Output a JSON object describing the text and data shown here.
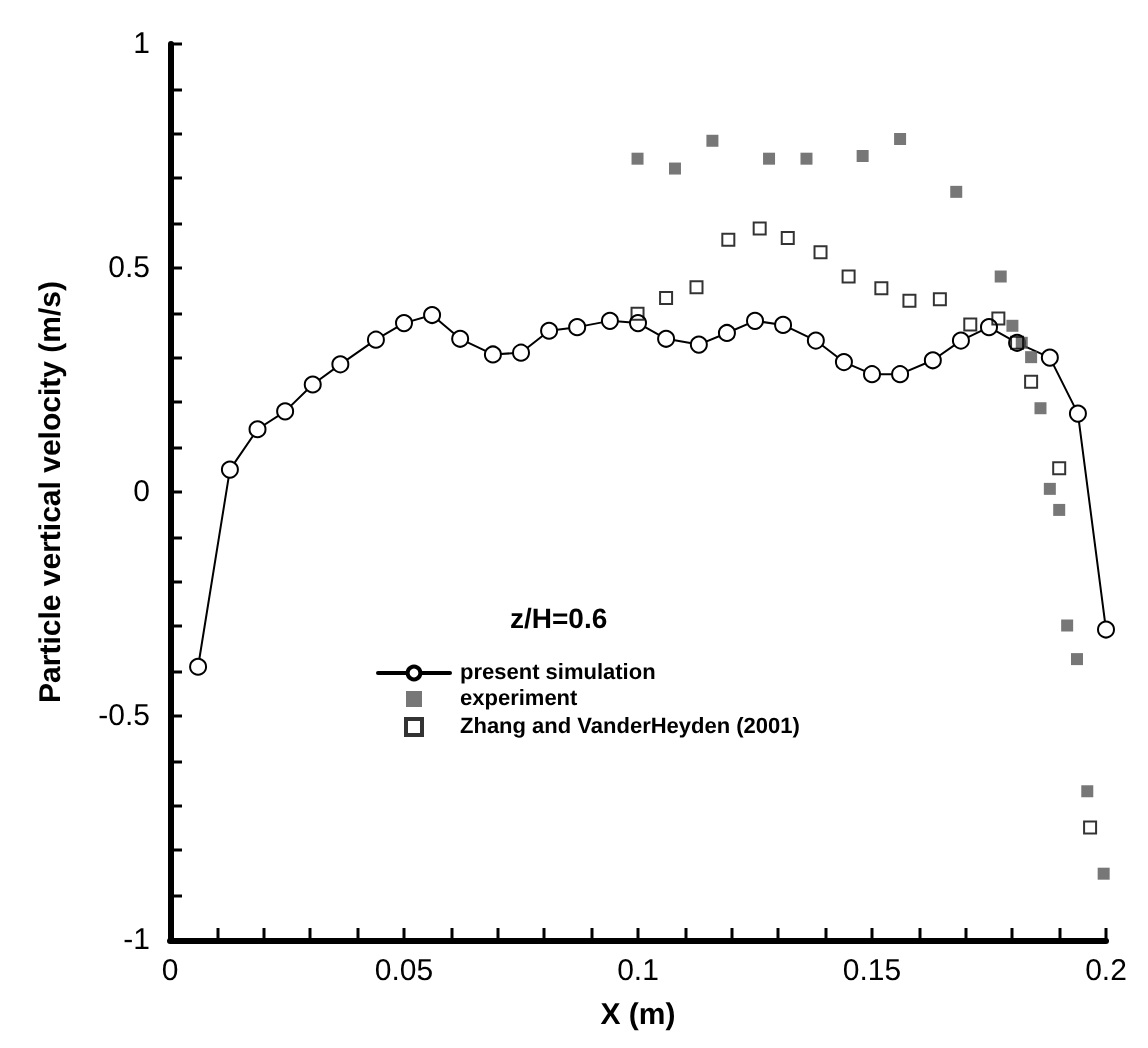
{
  "chart_data": {
    "type": "scatter",
    "xlabel": "X (m)",
    "ylabel": "Particle vertical velocity (m/s)",
    "legend_title": "z/H=0.6",
    "legend": "center",
    "xlim": [
      0,
      0.2
    ],
    "ylim": [
      -1,
      1
    ],
    "xticks": [
      0,
      {
        "value": 0.01,
        "label": null
      },
      {
        "value": 0.02,
        "label": null
      },
      {
        "value": 0.03,
        "label": null
      },
      {
        "value": 0.04,
        "label": null
      },
      0.05,
      {
        "value": 0.06,
        "label": null
      },
      {
        "value": 0.07,
        "label": null
      },
      {
        "value": 0.08,
        "label": null
      },
      {
        "value": 0.09,
        "label": null
      },
      0.1,
      {
        "value": 0.11,
        "label": null
      },
      {
        "value": 0.12,
        "label": null
      },
      {
        "value": 0.13,
        "label": null
      },
      {
        "value": 0.14,
        "label": null
      },
      0.15,
      {
        "value": 0.16,
        "label": null
      },
      {
        "value": 0.17,
        "label": null
      },
      {
        "value": 0.18,
        "label": null
      },
      {
        "value": 0.19,
        "label": null
      },
      0.2
    ],
    "yticks": [
      -1,
      {
        "value": -0.9,
        "label": null
      },
      {
        "value": -0.8,
        "label": null
      },
      {
        "value": -0.7,
        "label": null
      },
      {
        "value": -0.6,
        "label": null
      },
      -0.5,
      {
        "value": -0.4,
        "label": null
      },
      {
        "value": -0.3,
        "label": null
      },
      {
        "value": -0.2,
        "label": null
      },
      {
        "value": -0.1,
        "label": null
      },
      0,
      {
        "value": 0.1,
        "label": null
      },
      {
        "value": 0.2,
        "label": null
      },
      {
        "value": 0.3,
        "label": null
      },
      {
        "value": 0.4,
        "label": null
      },
      0.5,
      {
        "value": 0.6,
        "label": null
      },
      {
        "value": 0.7,
        "label": null
      },
      {
        "value": 0.8,
        "label": null
      },
      {
        "value": 0.9,
        "label": null
      },
      1
    ],
    "grid": false,
    "series": [
      {
        "name": "present simulation",
        "type": "line",
        "marker": "circle",
        "line_style": "solid",
        "color": "#000000",
        "x": [
          0.006,
          0.0128,
          0.0187,
          0.0246,
          0.0305,
          0.0364,
          0.044,
          0.05,
          0.056,
          0.062,
          0.069,
          0.075,
          0.081,
          0.087,
          0.094,
          0.1,
          0.106,
          0.113,
          0.119,
          0.125,
          0.131,
          0.138,
          0.144,
          0.15,
          0.156,
          0.163,
          0.169,
          0.175,
          0.181,
          0.188,
          0.194,
          0.2
        ],
        "values": [
          -0.39,
          0.05,
          0.14,
          0.18,
          0.24,
          0.285,
          0.34,
          0.377,
          0.395,
          0.342,
          0.307,
          0.311,
          0.36,
          0.368,
          0.382,
          0.377,
          0.342,
          0.329,
          0.355,
          0.382,
          0.373,
          0.338,
          0.29,
          0.263,
          0.263,
          0.294,
          0.338,
          0.368,
          0.333,
          0.3,
          0.175,
          -0.307
        ]
      },
      {
        "name": "experiment",
        "type": "scatter",
        "marker": "square",
        "color": "#555555",
        "x": [
          0.0999,
          0.1079,
          0.1159,
          0.128,
          0.136,
          0.148,
          0.156,
          0.168,
          0.1775,
          0.18,
          0.182,
          0.184,
          0.186,
          0.188,
          0.19,
          0.1917,
          0.1938,
          0.196,
          0.1995
        ],
        "values": [
          0.744,
          0.722,
          0.784,
          0.744,
          0.744,
          0.75,
          0.788,
          0.67,
          0.481,
          0.371,
          0.333,
          0.301,
          0.187,
          0.007,
          -0.04,
          -0.298,
          -0.373,
          -0.668,
          -0.852
        ]
      },
      {
        "name": "Zhang and VanderHeyden (2001)",
        "type": "scatter",
        "marker": "square",
        "color": "#000000",
        "x": [
          0.0999,
          0.106,
          0.1125,
          0.1193,
          0.126,
          0.132,
          0.139,
          0.145,
          0.152,
          0.158,
          0.1645,
          0.171,
          0.177,
          0.181,
          0.184,
          0.19,
          0.1966
        ],
        "values": [
          0.398,
          0.433,
          0.457,
          0.563,
          0.588,
          0.567,
          0.535,
          0.481,
          0.455,
          0.427,
          0.43,
          0.374,
          0.387,
          0.333,
          0.246,
          0.053,
          -0.749
        ]
      }
    ]
  }
}
